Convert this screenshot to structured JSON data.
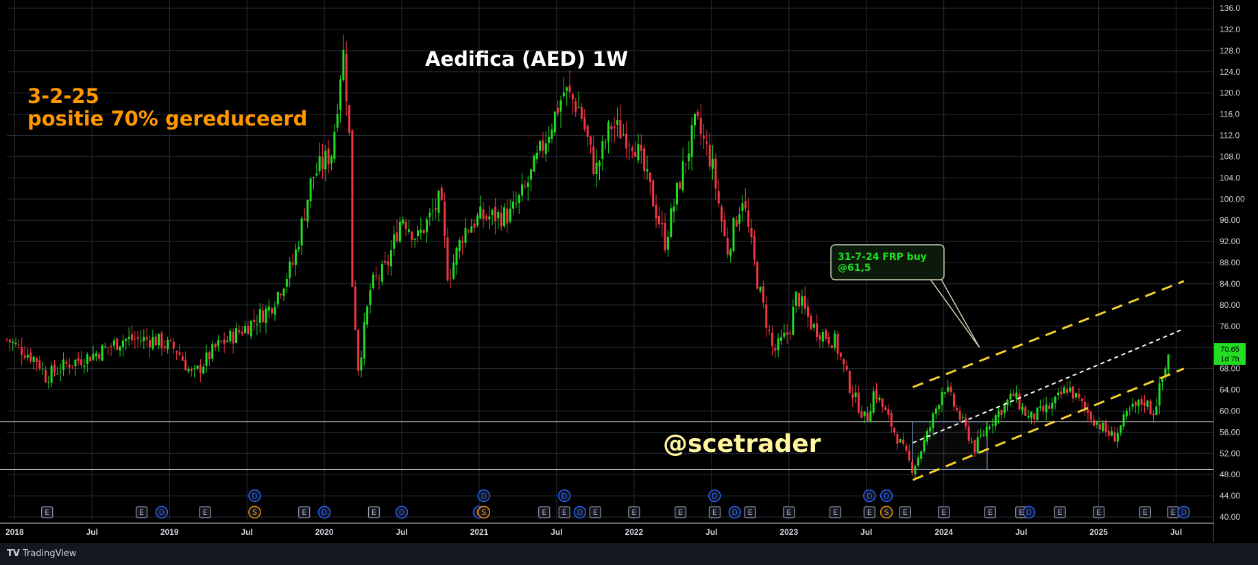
{
  "chart_data": {
    "type": "candlestick",
    "title": "Aedifica (AED) 1W",
    "annotation_date": "3-2-25",
    "annotation_text": "positie 70% gereduceerd",
    "watermark": "@scetrader",
    "callout_line1": "31-7-24 FRP buy",
    "callout_line2": "@61,5",
    "price_tag": "70.65",
    "price_tag_time": "1d 7h",
    "last_price": 70.65,
    "grid": true,
    "ylim": [
      40,
      137
    ],
    "y_ticks": [
      "136.0",
      "132.0",
      "128.0",
      "124.0",
      "120.0",
      "116.0",
      "112.0",
      "108.0",
      "104.0",
      "100.00",
      "96.00",
      "92.00",
      "88.00",
      "84.00",
      "80.00",
      "76.00",
      "72.00",
      "68.00",
      "64.00",
      "60.00",
      "56.00",
      "52.00",
      "48.00",
      "44.00",
      "40.00"
    ],
    "x_ticks": [
      "2018",
      "Jul",
      "2019",
      "Jul",
      "2020",
      "Jul",
      "2021",
      "Jul",
      "2022",
      "Jul",
      "2023",
      "Jul",
      "2024",
      "Jul",
      "2025",
      "Jul"
    ],
    "colors": {
      "up": "#22dd22",
      "down": "#f23645",
      "channel": "#f5d130",
      "midline": "#ffffff",
      "annotation": "#ff9800",
      "tag": "#22dd22"
    },
    "channel": {
      "lower": [
        [
          2023.8,
          47.0
        ],
        [
          2025.55,
          68.0
        ]
      ],
      "upper": [
        [
          2023.8,
          64.5
        ],
        [
          2025.55,
          84.5
        ]
      ],
      "mid": [
        [
          2023.8,
          54.0
        ],
        [
          2025.55,
          75.5
        ]
      ]
    },
    "box": {
      "x0": 2023.8,
      "x1": 2024.28,
      "y0": 49.0,
      "y1": 58.0
    },
    "hlines": [
      58.0,
      49.0
    ],
    "callout_anchor": [
      2024.23,
      72.0
    ],
    "price_path": [
      [
        2017.95,
        73.5
      ],
      [
        2018.15,
        69.5
      ],
      [
        2018.2,
        66.5
      ],
      [
        2018.35,
        69
      ],
      [
        2018.5,
        70.5
      ],
      [
        2018.7,
        73.5
      ],
      [
        2018.9,
        73.5
      ],
      [
        2019.05,
        71.5
      ],
      [
        2019.15,
        66.5
      ],
      [
        2019.3,
        72
      ],
      [
        2019.5,
        76
      ],
      [
        2019.65,
        79.5
      ],
      [
        2019.8,
        88
      ],
      [
        2019.92,
        104
      ],
      [
        2020.05,
        109
      ],
      [
        2020.12,
        128.5
      ],
      [
        2020.16,
        114
      ],
      [
        2020.18,
        84.5
      ],
      [
        2020.22,
        68
      ],
      [
        2020.3,
        83.5
      ],
      [
        2020.4,
        87
      ],
      [
        2020.5,
        97
      ],
      [
        2020.6,
        92.5
      ],
      [
        2020.75,
        100
      ],
      [
        2020.8,
        85
      ],
      [
        2020.9,
        94
      ],
      [
        2021.0,
        96.5
      ],
      [
        2021.2,
        97
      ],
      [
        2021.3,
        102
      ],
      [
        2021.45,
        113
      ],
      [
        2021.55,
        120.5
      ],
      [
        2021.65,
        117
      ],
      [
        2021.75,
        105
      ],
      [
        2021.85,
        114
      ],
      [
        2022.0,
        111
      ],
      [
        2022.1,
        102
      ],
      [
        2022.2,
        92
      ],
      [
        2022.3,
        104
      ],
      [
        2022.4,
        114.5
      ],
      [
        2022.5,
        107
      ],
      [
        2022.6,
        90
      ],
      [
        2022.7,
        100.5
      ],
      [
        2022.8,
        84
      ],
      [
        2022.9,
        71
      ],
      [
        2023.0,
        75
      ],
      [
        2023.05,
        82
      ],
      [
        2023.15,
        76
      ],
      [
        2023.3,
        73
      ],
      [
        2023.4,
        64
      ],
      [
        2023.5,
        58
      ],
      [
        2023.55,
        64
      ],
      [
        2023.7,
        55
      ],
      [
        2023.8,
        49
      ],
      [
        2023.9,
        56
      ],
      [
        2024.0,
        65
      ],
      [
        2024.1,
        59
      ],
      [
        2024.2,
        53
      ],
      [
        2024.3,
        58
      ],
      [
        2024.45,
        63
      ],
      [
        2024.55,
        58.5
      ],
      [
        2024.7,
        61
      ],
      [
        2024.8,
        64.5
      ],
      [
        2024.95,
        59
      ],
      [
        2025.05,
        56
      ],
      [
        2025.1,
        55
      ],
      [
        2025.2,
        60
      ],
      [
        2025.3,
        62
      ],
      [
        2025.35,
        59.5
      ],
      [
        2025.42,
        67
      ],
      [
        2025.46,
        70.65
      ]
    ]
  },
  "events": [
    {
      "k": "E",
      "t": 2018.21,
      "row": "b"
    },
    {
      "k": "E",
      "t": 2018.82,
      "row": "b"
    },
    {
      "k": "D",
      "t": 2018.95,
      "row": "b"
    },
    {
      "k": "E",
      "t": 2019.23,
      "row": "b"
    },
    {
      "k": "D",
      "t": 2019.55,
      "row": "t"
    },
    {
      "k": "S",
      "t": 2019.55,
      "row": "b"
    },
    {
      "k": "E",
      "t": 2019.87,
      "row": "b"
    },
    {
      "k": "D",
      "t": 2020.0,
      "row": "b"
    },
    {
      "k": "E",
      "t": 2020.32,
      "row": "b"
    },
    {
      "k": "D",
      "t": 2020.5,
      "row": "b"
    },
    {
      "k": "D",
      "t": 2021.0,
      "row": "b"
    },
    {
      "k": "D",
      "t": 2021.03,
      "row": "t"
    },
    {
      "k": "S",
      "t": 2021.03,
      "row": "b"
    },
    {
      "k": "E",
      "t": 2021.42,
      "row": "b"
    },
    {
      "k": "D",
      "t": 2021.55,
      "row": "t"
    },
    {
      "k": "E",
      "t": 2021.55,
      "row": "b"
    },
    {
      "k": "D",
      "t": 2021.65,
      "row": "b"
    },
    {
      "k": "E",
      "t": 2021.75,
      "row": "b"
    },
    {
      "k": "E",
      "t": 2022.0,
      "row": "b"
    },
    {
      "k": "E",
      "t": 2022.3,
      "row": "b"
    },
    {
      "k": "D",
      "t": 2022.52,
      "row": "t"
    },
    {
      "k": "E",
      "t": 2022.52,
      "row": "b"
    },
    {
      "k": "D",
      "t": 2022.65,
      "row": "b"
    },
    {
      "k": "E",
      "t": 2022.75,
      "row": "b"
    },
    {
      "k": "E",
      "t": 2023.0,
      "row": "b"
    },
    {
      "k": "E",
      "t": 2023.3,
      "row": "b"
    },
    {
      "k": "D",
      "t": 2023.52,
      "row": "t"
    },
    {
      "k": "D",
      "t": 2023.63,
      "row": "t"
    },
    {
      "k": "E",
      "t": 2023.52,
      "row": "b"
    },
    {
      "k": "S",
      "t": 2023.63,
      "row": "b"
    },
    {
      "k": "E",
      "t": 2023.75,
      "row": "b"
    },
    {
      "k": "E",
      "t": 2024.0,
      "row": "b"
    },
    {
      "k": "E",
      "t": 2024.3,
      "row": "b"
    },
    {
      "k": "E",
      "t": 2024.5,
      "row": "b"
    },
    {
      "k": "D",
      "t": 2024.55,
      "row": "b"
    },
    {
      "k": "E",
      "t": 2024.75,
      "row": "b"
    },
    {
      "k": "E",
      "t": 2025.0,
      "row": "b"
    },
    {
      "k": "E",
      "t": 2025.3,
      "row": "b"
    },
    {
      "k": "E",
      "t": 2025.48,
      "row": "b"
    },
    {
      "k": "D",
      "t": 2025.55,
      "row": "b"
    }
  ],
  "footer": {
    "brand_mark": "TV",
    "brand": "TradingView"
  }
}
